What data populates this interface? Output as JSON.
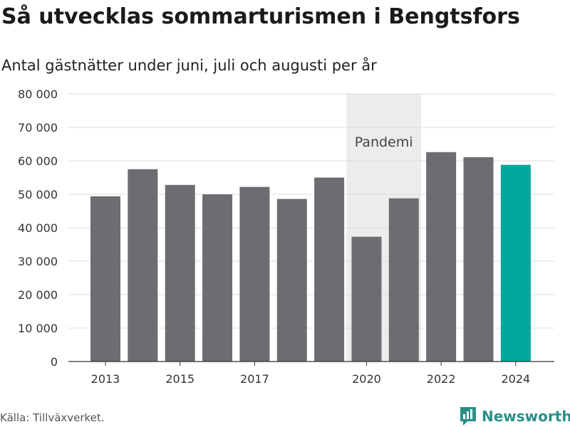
{
  "title": "Så utvecklas sommarturismen i Bengtsfors",
  "subtitle": "Antal gästnätter under juni, juli och augusti per år",
  "source": "Källa: Tillväxverket.",
  "brand": "Newsworthy",
  "colors": {
    "bar": "#6d6c71",
    "highlight": "#00a79d",
    "band": "#ececec",
    "grid": "#dddddd",
    "brand": "#2a8f88"
  },
  "chart_data": {
    "type": "bar",
    "categories": [
      "2013",
      "2014",
      "2015",
      "2016",
      "2017",
      "2018",
      "2019",
      "2020",
      "2021",
      "2022",
      "2023",
      "2024"
    ],
    "values": [
      49400,
      57500,
      52800,
      50000,
      52200,
      48600,
      55000,
      37300,
      48800,
      62600,
      61100,
      58800
    ],
    "highlight_index": 11,
    "x_tick_labels": [
      "2013",
      "2015",
      "2017",
      "2020",
      "2022",
      "2024"
    ],
    "ylim": [
      0,
      80000
    ],
    "y_ticks": [
      0,
      10000,
      20000,
      30000,
      40000,
      50000,
      60000,
      70000,
      80000
    ],
    "y_tick_labels": [
      "0",
      "10 000",
      "20 000",
      "30 000",
      "40 000",
      "50 000",
      "60 000",
      "70 000",
      "80 000"
    ],
    "grid": true,
    "annotation": {
      "label": "Pandemi",
      "from": "2020",
      "to": "2021"
    }
  }
}
